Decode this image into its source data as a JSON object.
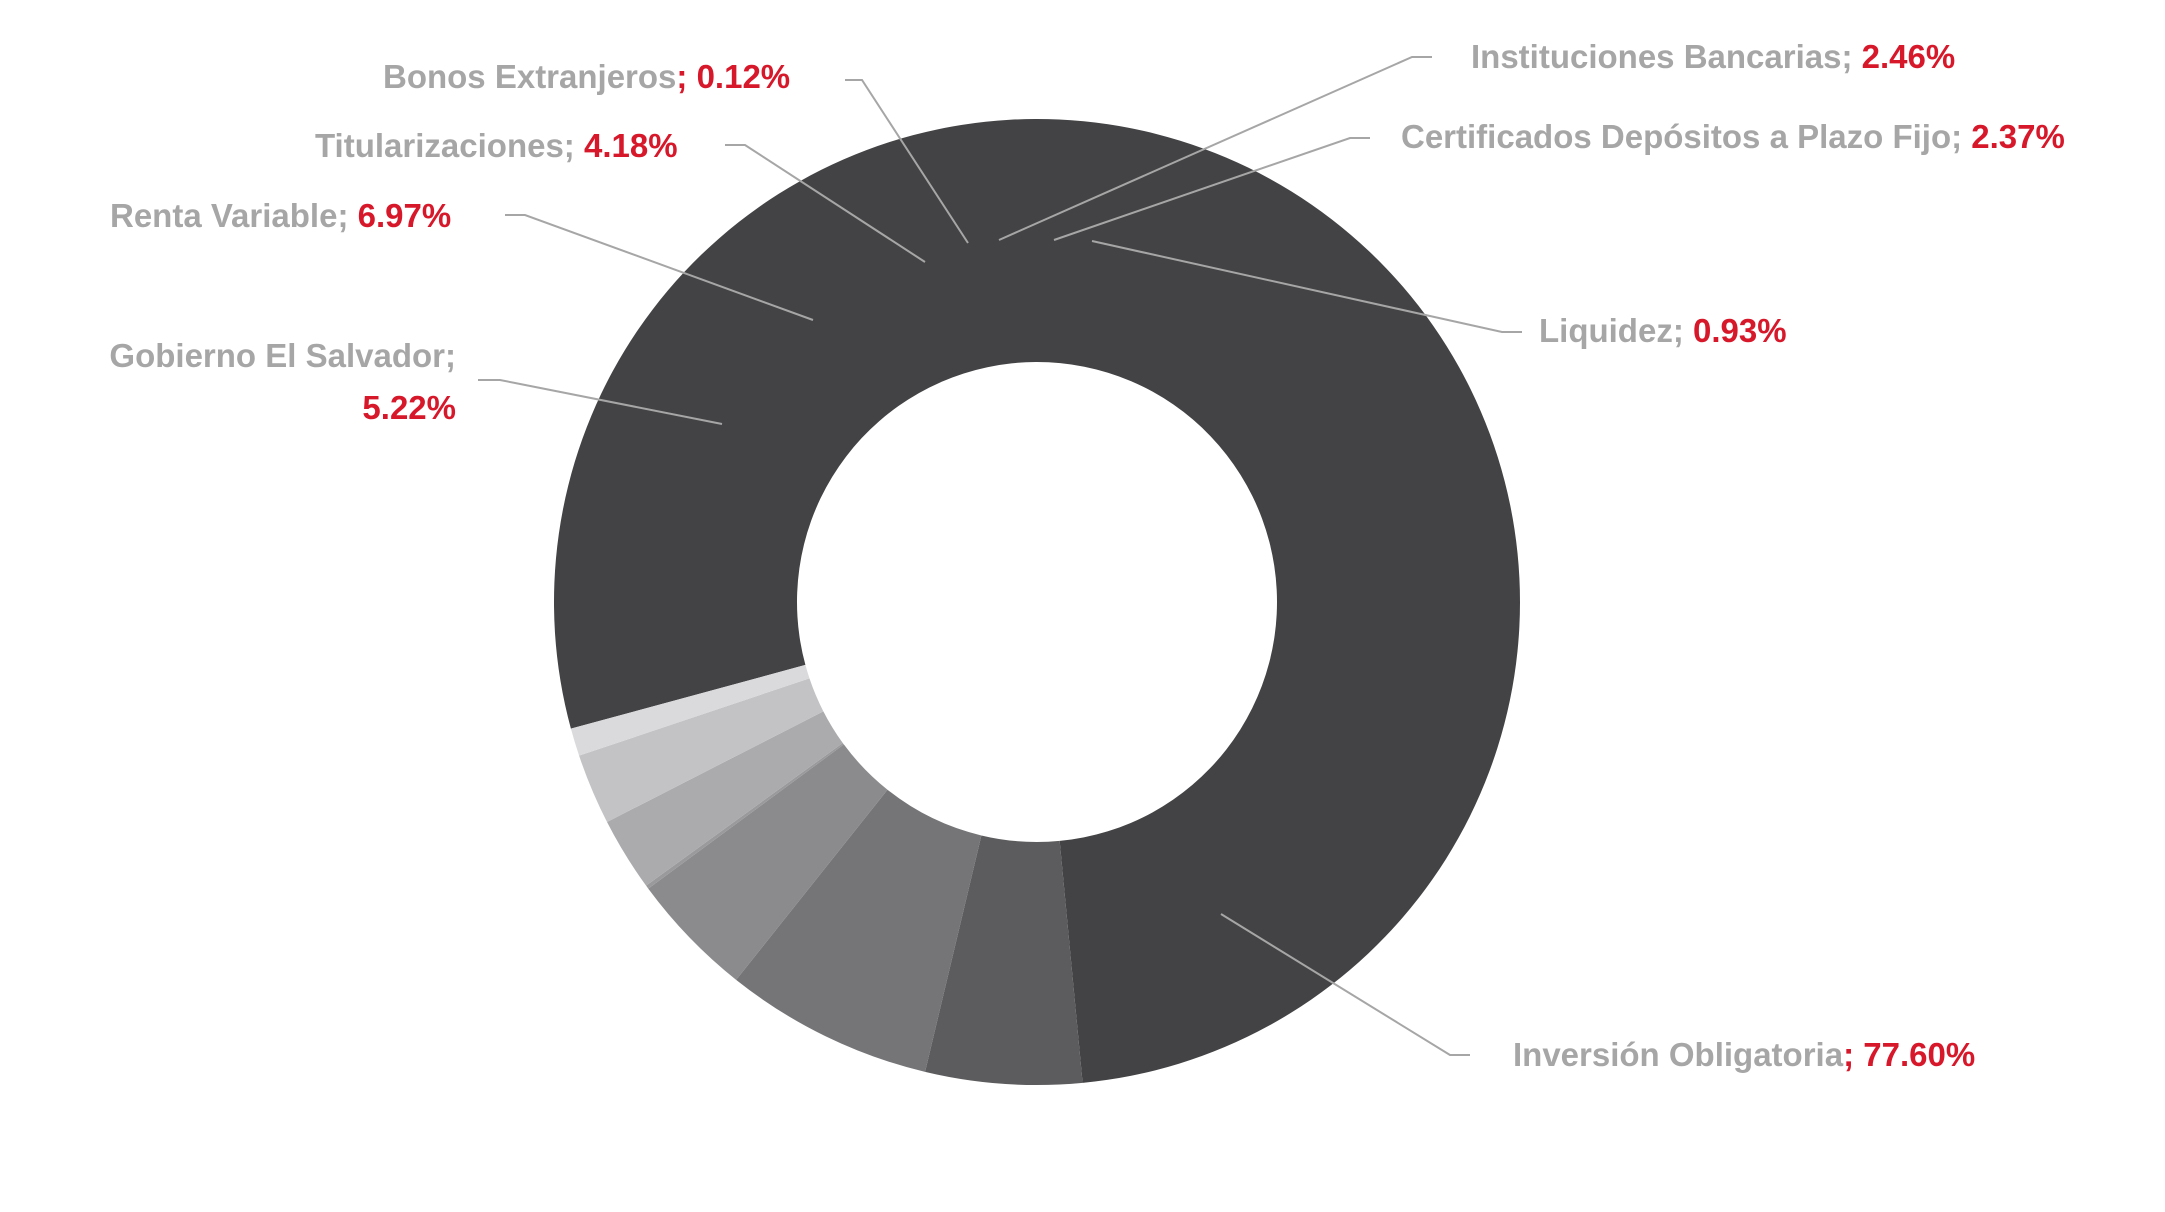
{
  "colors": {
    "label_text": "#a6a6a6",
    "value_text": "#d7182a",
    "leader_line": "#a6a6a6"
  },
  "chart_data": {
    "type": "pie",
    "donut": true,
    "title": "",
    "unit": "%",
    "slices": [
      {
        "name": "Inversión Obligatoria",
        "value": 77.6,
        "label_text": "Inversión Obligatoria",
        "value_text": "; 77.60%",
        "color": "#434345"
      },
      {
        "name": "Gobierno El Salvador",
        "value": 5.22,
        "label_text": "Gobierno El Salvador;",
        "value_text": "5.22%",
        "color": "#5c5c5e"
      },
      {
        "name": "Renta Variable",
        "value": 6.97,
        "label_text": "Renta Variable;",
        "value_text": "6.97%",
        "color": "#757578"
      },
      {
        "name": "Titularizaciones",
        "value": 4.18,
        "label_text": "Titularizaciones;",
        "value_text": "4.18%",
        "color": "#8b8b8d"
      },
      {
        "name": "Bonos Extranjeros",
        "value": 0.12,
        "label_text": "Bonos Extranjeros",
        "value_text": "; 0.12%",
        "color": "#9a9a9c"
      },
      {
        "name": "Instituciones Bancarias",
        "value": 2.46,
        "label_text": "Instituciones Bancarias;",
        "value_text": "2.46%",
        "color": "#ababae"
      },
      {
        "name": "Certificados Depósitos a Plazo Fijo",
        "value": 2.37,
        "label_text": "Certificados Depósitos a Plazo Fijo;",
        "value_text": "2.37%",
        "color": "#c3c3c5"
      },
      {
        "name": "Liquidez",
        "value": 0.93,
        "label_text": "Liquidez;",
        "value_text": "0.93%",
        "color": "#dadadc"
      }
    ]
  }
}
